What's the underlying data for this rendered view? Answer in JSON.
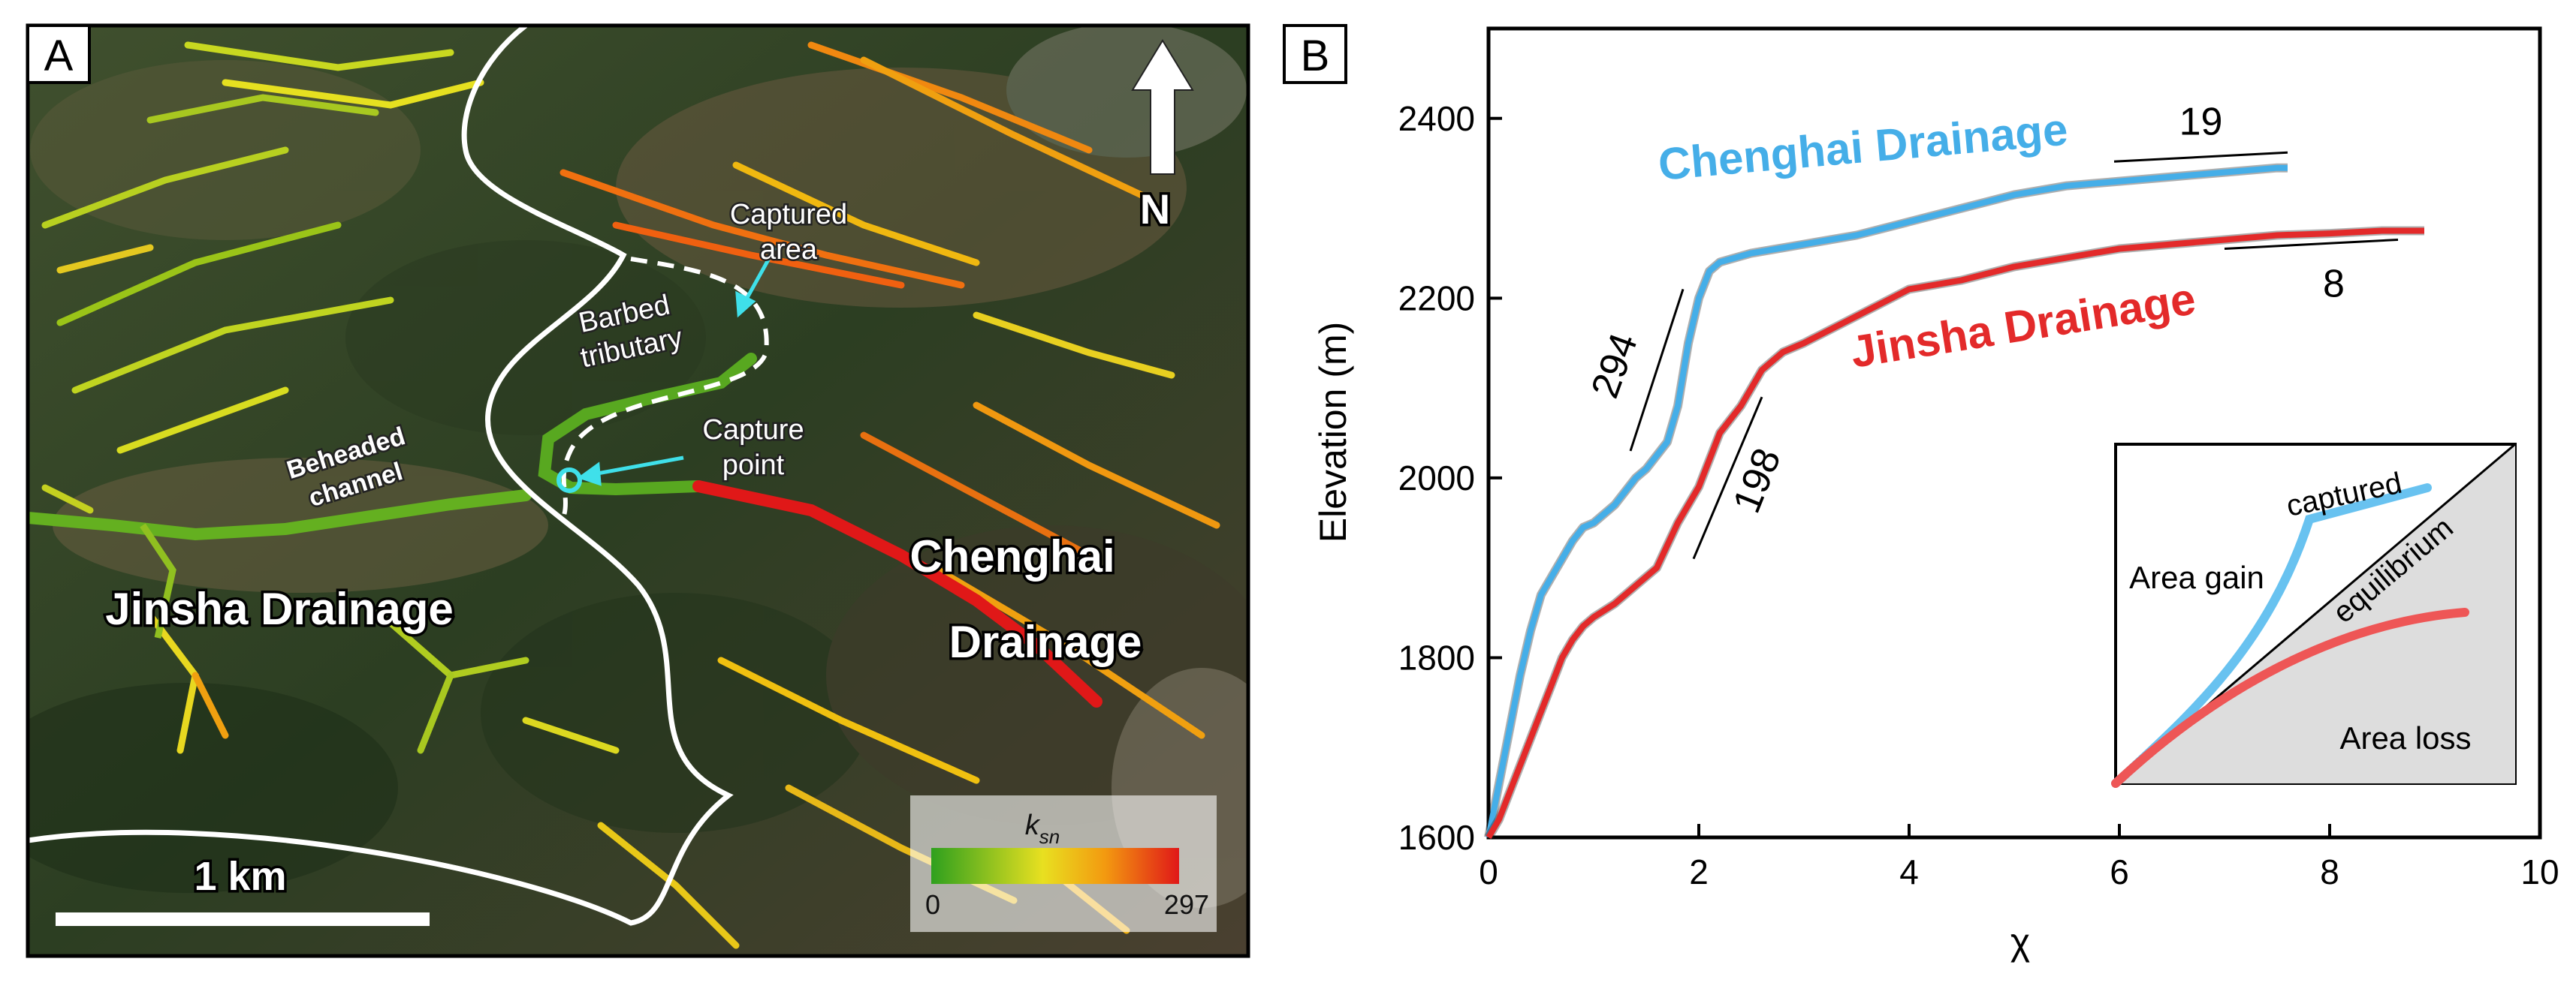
{
  "colors": {
    "chenghai": "#45aee8",
    "jinsha": "#e32a2a",
    "divide": "#ffffff",
    "capture_marker": "#3fe0ea",
    "ksn_low": "#2fa01e",
    "ksn_mid": "#f5e000",
    "ksn_high": "#e01818"
  },
  "panel_a": {
    "label": "A",
    "north_label": "N",
    "labels": {
      "captured_area": [
        "Captured",
        "area"
      ],
      "barbed_tributary": [
        "Barbed",
        "tributary"
      ],
      "capture_point": [
        "Capture",
        "point"
      ],
      "beheaded_channel": [
        "Beheaded",
        "channel"
      ],
      "jinsha_drainage": "Jinsha Drainage",
      "chenghai_drainage": [
        "Chenghai",
        "Drainage"
      ]
    },
    "scale_bar": "1 km",
    "legend": {
      "title": "k",
      "title_sub": "sn",
      "min": "0",
      "max": "297"
    }
  },
  "panel_b": {
    "label": "B",
    "inset": {
      "captured": "captured",
      "area_gain": "Area gain",
      "equilibrium": "equilibrium",
      "area_loss": "Area loss"
    }
  },
  "chart_data": {
    "type": "line",
    "title": "",
    "xlabel": "χ",
    "ylabel": "Elevation (m)",
    "xlim": [
      0,
      10
    ],
    "ylim": [
      1600,
      2500
    ],
    "xticks": [
      0,
      2,
      4,
      6,
      8,
      10
    ],
    "yticks": [
      1600,
      1800,
      2000,
      2200,
      2400
    ],
    "grid": false,
    "series": [
      {
        "name": "Chenghai Drainage",
        "color": "#45aee8",
        "x": [
          0,
          0.1,
          0.2,
          0.3,
          0.4,
          0.5,
          0.6,
          0.7,
          0.8,
          0.9,
          1.0,
          1.2,
          1.4,
          1.5,
          1.7,
          1.8,
          1.9,
          2.0,
          2.1,
          2.2,
          2.5,
          3.0,
          3.5,
          4.0,
          4.5,
          5.0,
          5.5,
          6.0,
          6.5,
          7.0,
          7.5,
          7.6
        ],
        "y": [
          1600,
          1660,
          1720,
          1780,
          1830,
          1870,
          1890,
          1910,
          1930,
          1945,
          1950,
          1970,
          2000,
          2010,
          2040,
          2080,
          2150,
          2200,
          2230,
          2240,
          2250,
          2260,
          2270,
          2285,
          2300,
          2315,
          2325,
          2330,
          2335,
          2340,
          2345,
          2345
        ]
      },
      {
        "name": "Jinsha Drainage",
        "color": "#e32a2a",
        "x": [
          0,
          0.1,
          0.2,
          0.3,
          0.4,
          0.5,
          0.6,
          0.7,
          0.8,
          0.9,
          1.0,
          1.2,
          1.4,
          1.6,
          1.8,
          2.0,
          2.2,
          2.4,
          2.6,
          2.8,
          3.0,
          3.5,
          4.0,
          4.5,
          5.0,
          5.5,
          6.0,
          6.5,
          7.0,
          7.5,
          8.0,
          8.5,
          8.9
        ],
        "y": [
          1600,
          1620,
          1650,
          1680,
          1710,
          1740,
          1770,
          1800,
          1820,
          1835,
          1845,
          1860,
          1880,
          1900,
          1950,
          1990,
          2050,
          2080,
          2120,
          2140,
          2150,
          2180,
          2210,
          2220,
          2235,
          2245,
          2255,
          2260,
          2265,
          2270,
          2272,
          2275,
          2275
        ]
      }
    ],
    "annotations": [
      {
        "text": "Chenghai Drainage",
        "series": "Chenghai Drainage"
      },
      {
        "text": "Jinsha Drainage",
        "series": "Jinsha Drainage"
      },
      {
        "text": "294",
        "segment": [
          [
            1.35,
            2030
          ],
          [
            1.85,
            2210
          ]
        ]
      },
      {
        "text": "198",
        "segment": [
          [
            1.95,
            1910
          ],
          [
            2.6,
            2090
          ]
        ]
      },
      {
        "text": "19",
        "segment": [
          [
            5.95,
            2352
          ],
          [
            7.6,
            2362
          ]
        ]
      },
      {
        "text": "8",
        "segment": [
          [
            7.0,
            2255
          ],
          [
            8.65,
            2265
          ]
        ]
      }
    ]
  }
}
